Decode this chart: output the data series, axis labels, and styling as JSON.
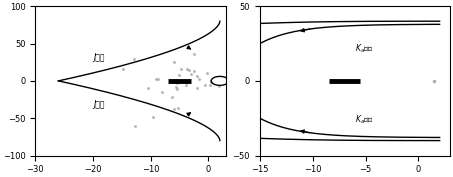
{
  "left_xlim": [
    -30,
    3
  ],
  "left_ylim": [
    -100,
    100
  ],
  "left_xticks": [
    -30,
    -20,
    -10,
    0
  ],
  "left_yticks": [
    -100,
    -50,
    0,
    50,
    100
  ],
  "right_xlim": [
    -15,
    3
  ],
  "right_ylim": [
    -50,
    50
  ],
  "right_xticks": [
    -15,
    -10,
    -5,
    0
  ],
  "right_yticks": [
    -50,
    0,
    50
  ],
  "text_color": "#000000",
  "line_color": "#000000",
  "dot_color": "#aaaaaa",
  "bg_color": "#ffffff",
  "left_label_upper": "J增加",
  "left_label_lower": "J增加",
  "right_label_upper": "$K_a$增加",
  "right_label_lower": "$K_a$增加"
}
